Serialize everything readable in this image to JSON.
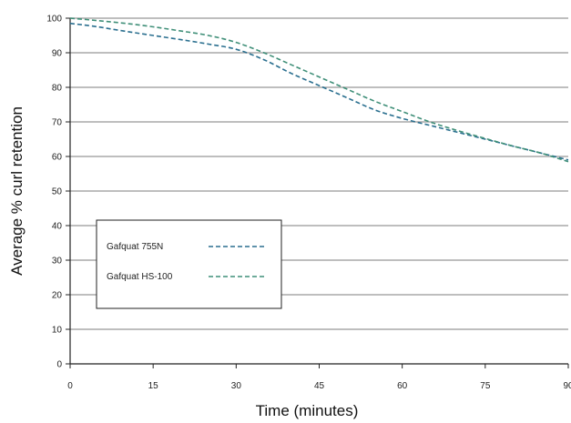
{
  "chart_data": {
    "type": "line",
    "xlabel": "Time (minutes)",
    "ylabel": "Average % curl retention",
    "xlim": [
      0,
      90
    ],
    "ylim": [
      0,
      100
    ],
    "x_ticks": [
      "0",
      "15",
      "30",
      "45",
      "60",
      "75",
      "90"
    ],
    "y_ticks": [
      "0",
      "10",
      "20",
      "30",
      "40",
      "50",
      "60",
      "70",
      "80",
      "90",
      "100"
    ],
    "grid": "horizontal",
    "legend_position": "lower-left",
    "series": [
      {
        "name": "Gafquat 755N",
        "color": "#2a6f8f",
        "dash": "dashed",
        "x": [
          0,
          5,
          10,
          15,
          20,
          25,
          30,
          35,
          40,
          45,
          50,
          55,
          60,
          65,
          70,
          75,
          80,
          85,
          90
        ],
        "y": [
          98.5,
          97.5,
          96.2,
          95,
          93.8,
          92.5,
          91,
          88,
          84,
          80.5,
          77,
          73.5,
          71,
          69,
          67,
          65,
          63,
          61,
          59
        ]
      },
      {
        "name": "Gafquat HS-100",
        "color": "#3f8f78",
        "dash": "dashed",
        "x": [
          0,
          5,
          10,
          15,
          20,
          25,
          30,
          35,
          40,
          45,
          50,
          55,
          60,
          65,
          70,
          75,
          80,
          85,
          90
        ],
        "y": [
          100,
          99.3,
          98.5,
          97.5,
          96.3,
          95,
          93,
          90,
          86.5,
          83,
          79.5,
          76,
          73,
          70,
          67.5,
          65.2,
          63,
          61,
          58.5
        ]
      }
    ]
  }
}
